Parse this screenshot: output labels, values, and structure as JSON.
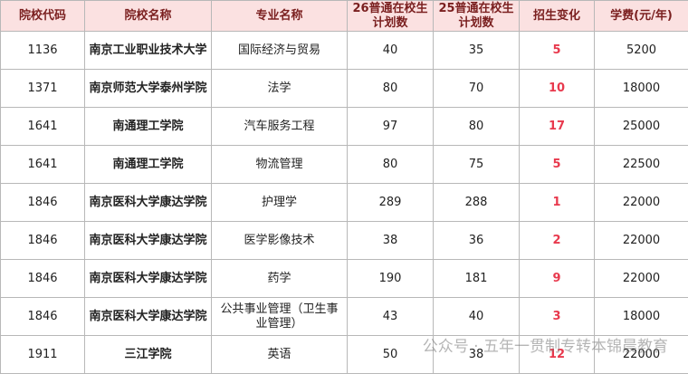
{
  "table": {
    "columns": [
      "院校代码",
      "院校名称",
      "专业名称",
      "26普通在校生计划数",
      "25普通在校生计划数",
      "招生变化",
      "学费(元/年)"
    ],
    "rows": [
      [
        "1136",
        "南京工业职业技术大学",
        "国际经济与贸易",
        40,
        35,
        5,
        5200
      ],
      [
        "1371",
        "南京师范大学泰州学院",
        "法学",
        80,
        70,
        10,
        18000
      ],
      [
        "1641",
        "南通理工学院",
        "汽车服务工程",
        97,
        80,
        17,
        25000
      ],
      [
        "1641",
        "南通理工学院",
        "物流管理",
        80,
        75,
        5,
        22500
      ],
      [
        "1846",
        "南京医科大学康达学院",
        "护理学",
        289,
        288,
        1,
        22000
      ],
      [
        "1846",
        "南京医科大学康达学院",
        "医学影像技术",
        38,
        36,
        2,
        22000
      ],
      [
        "1846",
        "南京医科大学康达学院",
        "药学",
        190,
        181,
        9,
        22000
      ],
      [
        "1846",
        "南京医科大学康达学院",
        "公共事业管理（卫生事业管理）",
        43,
        40,
        3,
        18000
      ],
      [
        "1911",
        "三江学院",
        "英语",
        50,
        38,
        12,
        22000
      ]
    ]
  },
  "watermark": "公众号 · 五年一贯制专转本锦晨教育"
}
